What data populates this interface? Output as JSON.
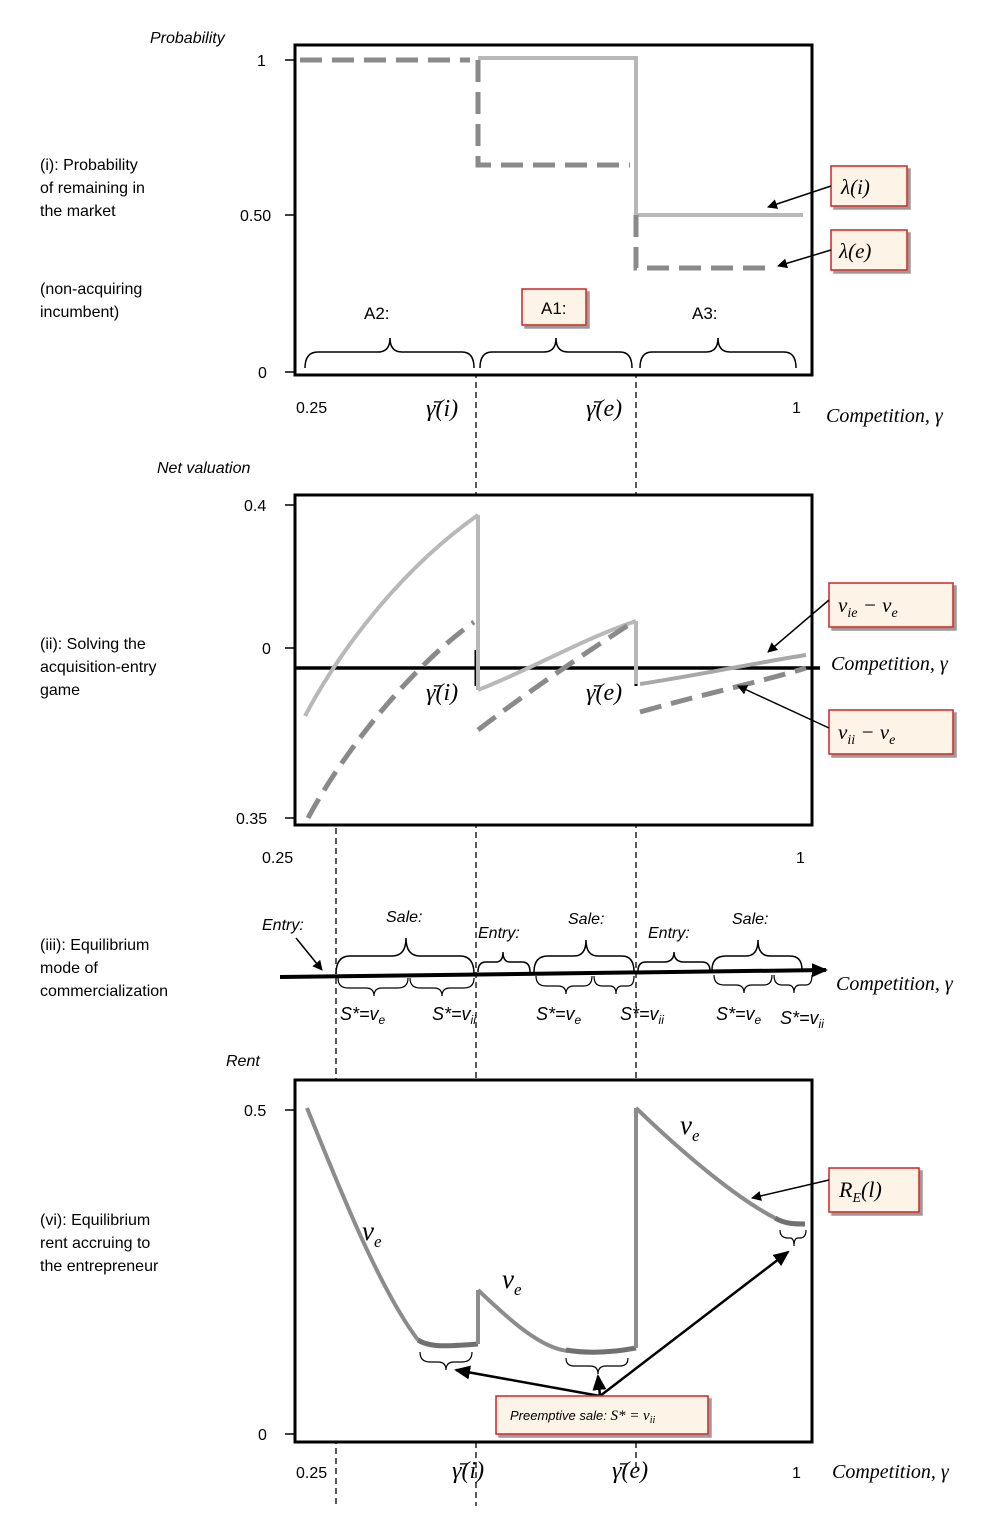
{
  "panel1": {
    "y_title": "Probability",
    "side_label": [
      "(i): Probability",
      "of remaining in",
      "the market",
      "",
      "(non-acquiring",
      "incumbent)"
    ],
    "y_ticks": [
      "1",
      "0.50",
      "0"
    ],
    "x_ticks": [
      "0.25",
      "1"
    ],
    "x_title": "Competition, γ",
    "gamma_i": "γ̄(i)",
    "gamma_e": "γ̄(e)",
    "regions": [
      "A2:",
      "A1:",
      "A3:"
    ],
    "legend": [
      "λ(i)",
      "λ(e)"
    ]
  },
  "panel2": {
    "y_title": "Net valuation",
    "side_label": [
      "(ii): Solving the",
      "acquisition-entry",
      "game"
    ],
    "y_ticks": [
      "0.4",
      "0",
      "0.35"
    ],
    "x_ticks": [
      "0.25",
      "1"
    ],
    "x_title": "Competition, γ",
    "gamma_i": "γ̄(i)",
    "gamma_e": "γ̄(e)",
    "legend_ie": "v_ie − v_e",
    "legend_ii": "v_ii − v_e"
  },
  "panel3": {
    "side_label": [
      "(iii):  Equilibrium",
      "mode of",
      "commercialization"
    ],
    "x_title": "Competition, γ",
    "modes": [
      "Entry:",
      "Sale:",
      "Entry:",
      "Sale:",
      "Entry:",
      "Sale:"
    ],
    "s_labels": [
      "S*=v_e",
      "S*=v_ii",
      "S*=v_e",
      "S*=v_ii",
      "S*=v_e",
      "S*=v_ii"
    ]
  },
  "panel4": {
    "y_title": "Rent",
    "side_label": [
      "(vi):  Equilibrium",
      "rent accruing to",
      "the entrepreneur"
    ],
    "y_ticks": [
      "0.5",
      "0"
    ],
    "x_ticks": [
      "0.25",
      "1"
    ],
    "x_title": "Competition, γ",
    "gamma_i": "γ̄(i)",
    "gamma_e": "γ̄(e)",
    "curve_labels": [
      "v_e",
      "v_e",
      "v_e"
    ],
    "legend_re": "R_E(l)",
    "preemptive": "Preemptive sale: S* = v_ii"
  },
  "chart_data": [
    {
      "type": "line",
      "ylabel": "Probability",
      "xlabel": "Competition, γ",
      "xlim": [
        0.25,
        1
      ],
      "ylim": [
        0,
        1
      ],
      "series": [
        {
          "name": "λ(i)",
          "x": [
            0.25,
            0.48,
            0.48,
            0.7,
            0.7,
            1.0
          ],
          "y": [
            1,
            1,
            1,
            1,
            0.5,
            0.5
          ]
        },
        {
          "name": "λ(e)",
          "x": [
            0.25,
            0.48,
            0.48,
            0.7,
            0.7,
            1.0
          ],
          "y": [
            1,
            1,
            0.667,
            0.667,
            0.333,
            0.333
          ]
        }
      ]
    },
    {
      "type": "line",
      "ylabel": "Net valuation",
      "xlabel": "Competition, γ",
      "series": [
        {
          "name": "v_ie − v_e",
          "note": "rises from about -0.12 to 0.37 on A2, then drops and rises to about 0.11 on A1, then drops and rises to about 0.03 on A3"
        },
        {
          "name": "v_ii − v_e",
          "note": "rises from about -0.35 to 0.14 on A2, then drops and rises to about 0.11 on A1, then drops and rises to about 0 on A3"
        }
      ]
    },
    {
      "type": "line",
      "ylabel": "Rent",
      "xlabel": "Competition, γ",
      "ylim": [
        0,
        0.5
      ],
      "series": [
        {
          "name": "R_E(l)",
          "note": "falls from 0.5 at 0.25 to about 0.14 near γ̄(i), jumps to about 0.25 and falls to about 0.14 near γ̄(e), jumps to 0.5 and falls to about 0.33 at 1"
        }
      ]
    }
  ]
}
